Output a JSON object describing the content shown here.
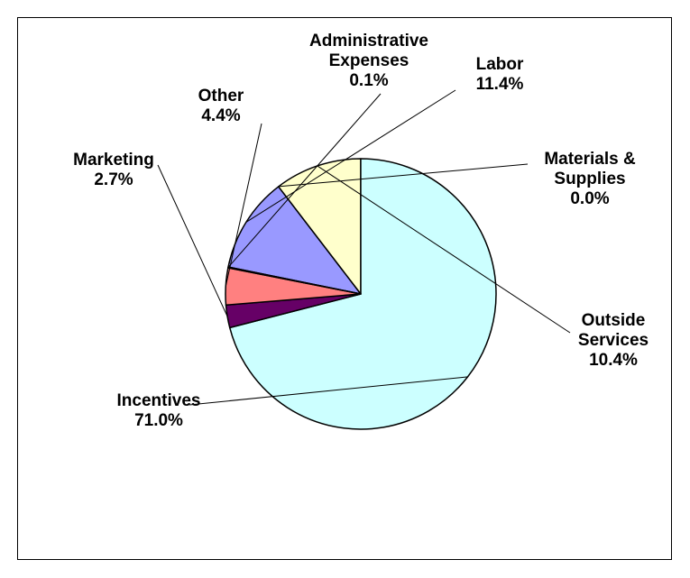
{
  "chart_data": {
    "type": "pie",
    "title": "",
    "legend": "none",
    "slices": [
      {
        "label": "Labor",
        "value": 11.4,
        "value_text": "11.4%",
        "color": "#9999ff"
      },
      {
        "label": "Materials & Supplies",
        "value": 0.0,
        "value_text": "0.0%",
        "color": "#993366"
      },
      {
        "label": "Outside Services",
        "value": 10.4,
        "value_text": "10.4%",
        "color": "#ffffcc"
      },
      {
        "label": "Incentives",
        "value": 71.0,
        "value_text": "71.0%",
        "color": "#ccffff"
      },
      {
        "label": "Marketing",
        "value": 2.7,
        "value_text": "2.7%",
        "color": "#660066"
      },
      {
        "label": "Other",
        "value": 4.4,
        "value_text": "4.4%",
        "color": "#ff8080"
      },
      {
        "label": "Administrative Expenses",
        "value": 0.1,
        "value_text": "0.1%",
        "color": "#0066cc"
      }
    ]
  }
}
